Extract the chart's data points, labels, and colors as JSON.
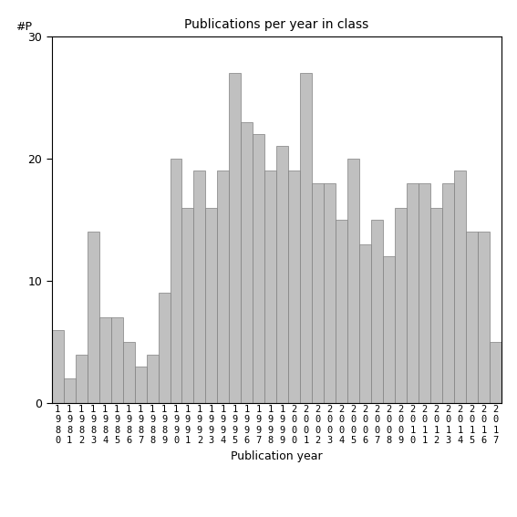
{
  "title": "Publications per year in class",
  "xlabel": "Publication year",
  "ylabel_text": "#P",
  "bar_color": "#c0c0c0",
  "edge_color": "#808080",
  "ylim": [
    0,
    30
  ],
  "yticks": [
    0,
    10,
    20,
    30
  ],
  "years": [
    1980,
    1981,
    1982,
    1983,
    1984,
    1985,
    1986,
    1987,
    1988,
    1989,
    1990,
    1991,
    1992,
    1993,
    1994,
    1995,
    1996,
    1997,
    1998,
    1999,
    2000,
    2001,
    2002,
    2003,
    2004,
    2005,
    2006,
    2007,
    2008,
    2009,
    2010,
    2011,
    2012,
    2013,
    2014,
    2015,
    2016,
    2017
  ],
  "values": [
    6,
    2,
    4,
    14,
    7,
    7,
    5,
    3,
    4,
    9,
    20,
    16,
    19,
    16,
    19,
    27,
    23,
    22,
    19,
    21,
    19,
    27,
    18,
    18,
    15,
    20,
    13,
    15,
    12,
    16,
    18,
    18,
    16,
    18,
    19,
    14,
    14,
    5
  ]
}
